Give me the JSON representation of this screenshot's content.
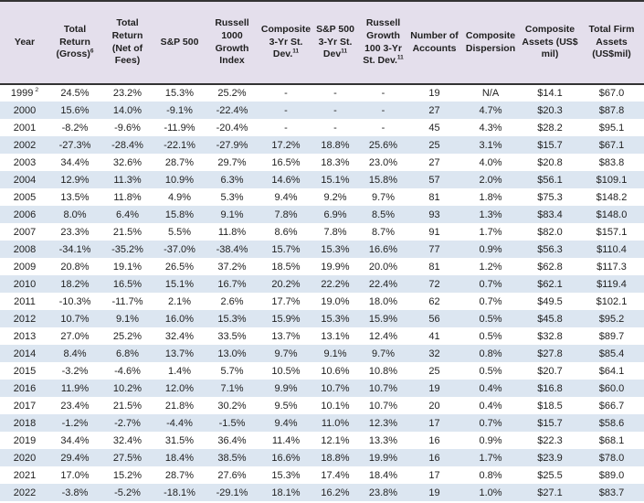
{
  "colors": {
    "header_bg": "#e4dfec",
    "stripe_bg": "#dce6f1",
    "rule_color": "#333333",
    "text_color": "#1f1f1f"
  },
  "chart_data": {
    "type": "table",
    "title": "",
    "columns": [
      {
        "label": "Year",
        "sup": ""
      },
      {
        "label": "Total Return (Gross)",
        "sup": "6"
      },
      {
        "label": "Total Return (Net of Fees)",
        "sup": ""
      },
      {
        "label": "S&P 500",
        "sup": ""
      },
      {
        "label": "Russell 1000 Growth Index",
        "sup": ""
      },
      {
        "label": "Composite 3-Yr St. Dev.",
        "sup": "11"
      },
      {
        "label": "S&P 500 3-Yr St. Dev",
        "sup": "11"
      },
      {
        "label": "Russell Growth 100 3-Yr St. Dev.",
        "sup": "11"
      },
      {
        "label": "Number of Accounts",
        "sup": ""
      },
      {
        "label": "Composite Dispersion",
        "sup": ""
      },
      {
        "label": "Composite Assets (US$ mil)",
        "sup": ""
      },
      {
        "label": "Total Firm Assets (US$mil)",
        "sup": ""
      }
    ],
    "rows": [
      {
        "year": "1999",
        "year_sup": "2",
        "values": [
          "24.5%",
          "23.2%",
          "15.3%",
          "25.2%",
          "-",
          "-",
          "-",
          "19",
          "N/A",
          "$14.1",
          "$67.0"
        ]
      },
      {
        "year": "2000",
        "year_sup": "",
        "values": [
          "15.6%",
          "14.0%",
          "-9.1%",
          "-22.4%",
          "-",
          "-",
          "-",
          "27",
          "4.7%",
          "$20.3",
          "$87.8"
        ]
      },
      {
        "year": "2001",
        "year_sup": "",
        "values": [
          "-8.2%",
          "-9.6%",
          "-11.9%",
          "-20.4%",
          "-",
          "-",
          "-",
          "45",
          "4.3%",
          "$28.2",
          "$95.1"
        ]
      },
      {
        "year": "2002",
        "year_sup": "",
        "values": [
          "-27.3%",
          "-28.4%",
          "-22.1%",
          "-27.9%",
          "17.2%",
          "18.8%",
          "25.6%",
          "25",
          "3.1%",
          "$15.7",
          "$67.1"
        ]
      },
      {
        "year": "2003",
        "year_sup": "",
        "values": [
          "34.4%",
          "32.6%",
          "28.7%",
          "29.7%",
          "16.5%",
          "18.3%",
          "23.0%",
          "27",
          "4.0%",
          "$20.8",
          "$83.8"
        ]
      },
      {
        "year": "2004",
        "year_sup": "",
        "values": [
          "12.9%",
          "11.3%",
          "10.9%",
          "6.3%",
          "14.6%",
          "15.1%",
          "15.8%",
          "57",
          "2.0%",
          "$56.1",
          "$109.1"
        ]
      },
      {
        "year": "2005",
        "year_sup": "",
        "values": [
          "13.5%",
          "11.8%",
          "4.9%",
          "5.3%",
          "9.4%",
          "9.2%",
          "9.7%",
          "81",
          "1.8%",
          "$75.3",
          "$148.2"
        ]
      },
      {
        "year": "2006",
        "year_sup": "",
        "values": [
          "8.0%",
          "6.4%",
          "15.8%",
          "9.1%",
          "7.8%",
          "6.9%",
          "8.5%",
          "93",
          "1.3%",
          "$83.4",
          "$148.0"
        ]
      },
      {
        "year": "2007",
        "year_sup": "",
        "values": [
          "23.3%",
          "21.5%",
          "5.5%",
          "11.8%",
          "8.6%",
          "7.8%",
          "8.7%",
          "91",
          "1.7%",
          "$82.0",
          "$157.1"
        ]
      },
      {
        "year": "2008",
        "year_sup": "",
        "values": [
          "-34.1%",
          "-35.2%",
          "-37.0%",
          "-38.4%",
          "15.7%",
          "15.3%",
          "16.6%",
          "77",
          "0.9%",
          "$56.3",
          "$110.4"
        ]
      },
      {
        "year": "2009",
        "year_sup": "",
        "values": [
          "20.8%",
          "19.1%",
          "26.5%",
          "37.2%",
          "18.5%",
          "19.9%",
          "20.0%",
          "81",
          "1.2%",
          "$62.8",
          "$117.3"
        ]
      },
      {
        "year": "2010",
        "year_sup": "",
        "values": [
          "18.2%",
          "16.5%",
          "15.1%",
          "16.7%",
          "20.2%",
          "22.2%",
          "22.4%",
          "72",
          "0.7%",
          "$62.1",
          "$119.4"
        ]
      },
      {
        "year": "2011",
        "year_sup": "",
        "values": [
          "-10.3%",
          "-11.7%",
          "2.1%",
          "2.6%",
          "17.7%",
          "19.0%",
          "18.0%",
          "62",
          "0.7%",
          "$49.5",
          "$102.1"
        ]
      },
      {
        "year": "2012",
        "year_sup": "",
        "values": [
          "10.7%",
          "9.1%",
          "16.0%",
          "15.3%",
          "15.9%",
          "15.3%",
          "15.9%",
          "56",
          "0.5%",
          "$45.8",
          "$95.2"
        ]
      },
      {
        "year": "2013",
        "year_sup": "",
        "values": [
          "27.0%",
          "25.2%",
          "32.4%",
          "33.5%",
          "13.7%",
          "13.1%",
          "12.4%",
          "41",
          "0.5%",
          "$32.8",
          "$89.7"
        ]
      },
      {
        "year": "2014",
        "year_sup": "",
        "values": [
          "8.4%",
          "6.8%",
          "13.7%",
          "13.0%",
          "9.7%",
          "9.1%",
          "9.7%",
          "32",
          "0.8%",
          "$27.8",
          "$85.4"
        ]
      },
      {
        "year": "2015",
        "year_sup": "",
        "values": [
          "-3.2%",
          "-4.6%",
          "1.4%",
          "5.7%",
          "10.5%",
          "10.6%",
          "10.8%",
          "25",
          "0.5%",
          "$20.7",
          "$64.1"
        ]
      },
      {
        "year": "2016",
        "year_sup": "",
        "values": [
          "11.9%",
          "10.2%",
          "12.0%",
          "7.1%",
          "9.9%",
          "10.7%",
          "10.7%",
          "19",
          "0.4%",
          "$16.8",
          "$60.0"
        ]
      },
      {
        "year": "2017",
        "year_sup": "",
        "values": [
          "23.4%",
          "21.5%",
          "21.8%",
          "30.2%",
          "9.5%",
          "10.1%",
          "10.7%",
          "20",
          "0.4%",
          "$18.5",
          "$66.7"
        ]
      },
      {
        "year": "2018",
        "year_sup": "",
        "values": [
          "-1.2%",
          "-2.7%",
          "-4.4%",
          "-1.5%",
          "9.4%",
          "11.0%",
          "12.3%",
          "17",
          "0.7%",
          "$15.7",
          "$58.6"
        ]
      },
      {
        "year": "2019",
        "year_sup": "",
        "values": [
          "34.4%",
          "32.4%",
          "31.5%",
          "36.4%",
          "11.4%",
          "12.1%",
          "13.3%",
          "16",
          "0.9%",
          "$22.3",
          "$68.1"
        ]
      },
      {
        "year": "2020",
        "year_sup": "",
        "values": [
          "29.4%",
          "27.5%",
          "18.4%",
          "38.5%",
          "16.6%",
          "18.8%",
          "19.9%",
          "16",
          "1.7%",
          "$23.9",
          "$78.0"
        ]
      },
      {
        "year": "2021",
        "year_sup": "",
        "values": [
          "17.0%",
          "15.2%",
          "28.7%",
          "27.6%",
          "15.3%",
          "17.4%",
          "18.4%",
          "17",
          "0.8%",
          "$25.5",
          "$89.0"
        ]
      },
      {
        "year": "2022",
        "year_sup": "",
        "values": [
          "-3.8%",
          "-5.2%",
          "-18.1%",
          "-29.1%",
          "18.1%",
          "16.2%",
          "23.8%",
          "19",
          "1.0%",
          "$27.1",
          "$83.7"
        ]
      }
    ]
  }
}
